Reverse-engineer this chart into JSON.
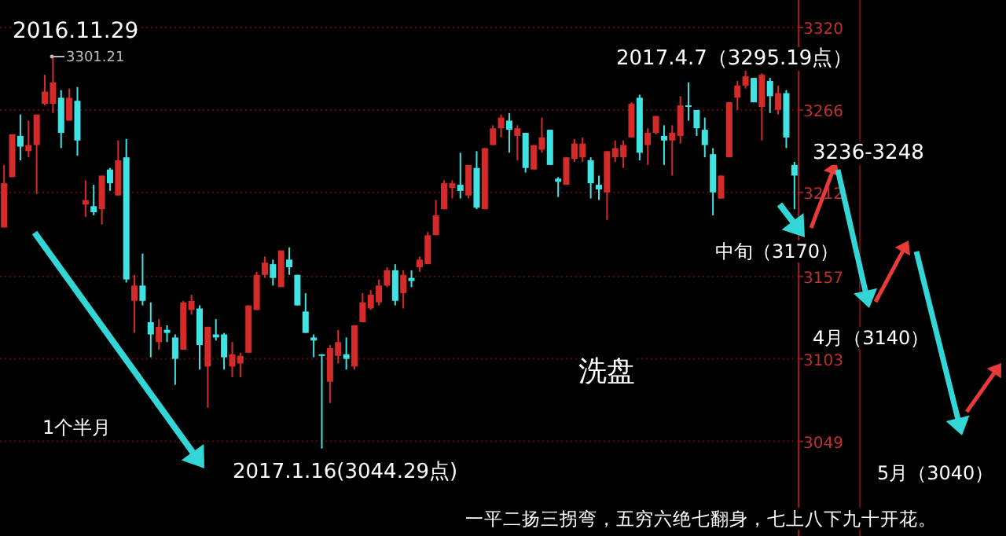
{
  "chart_data": {
    "type": "candlestick",
    "categories": [
      null,
      null,
      null,
      null,
      null,
      null,
      null,
      null,
      null,
      null,
      null,
      null,
      null,
      null,
      null,
      null,
      null,
      null,
      null,
      null,
      null,
      null,
      null,
      null,
      null,
      null,
      null,
      null,
      null,
      null,
      null,
      null,
      null,
      null,
      null,
      null,
      null,
      null,
      null,
      null,
      null,
      null,
      null,
      null,
      null,
      null,
      null,
      null,
      null,
      null,
      null,
      null,
      null,
      null,
      null,
      null,
      null,
      null,
      null,
      null,
      null,
      null,
      null,
      null,
      null,
      null,
      null,
      null,
      null,
      null,
      null,
      null,
      null,
      null,
      null,
      null,
      null,
      null,
      null,
      null,
      null,
      null,
      null,
      null,
      null,
      null,
      null,
      null,
      null,
      null,
      null,
      null,
      null,
      null,
      null,
      null,
      null,
      null
    ],
    "ohlc": [
      [
        3189,
        3230,
        3189,
        3218
      ],
      [
        3222,
        3250,
        3222,
        3250
      ],
      [
        3249,
        3263,
        3233,
        3242
      ],
      [
        3239,
        3259,
        3235,
        3243
      ],
      [
        3243,
        3263,
        3211,
        3263
      ],
      [
        3270,
        3289,
        3269,
        3278
      ],
      [
        3270,
        3301.21,
        3264,
        3284
      ],
      [
        3274,
        3279,
        3241,
        3251
      ],
      [
        3259,
        3280,
        3259,
        3274
      ],
      [
        3272,
        3281,
        3236,
        3246
      ],
      [
        3204,
        3220,
        3196,
        3207
      ],
      [
        3203,
        3217,
        3197,
        3199
      ],
      [
        3201,
        3223,
        3191,
        3223
      ],
      [
        3227,
        3228,
        3213,
        3218
      ],
      [
        3210,
        3246,
        3210,
        3233
      ],
      [
        3235,
        3247,
        3153,
        3155
      ],
      [
        3141,
        3158,
        3120,
        3151
      ],
      [
        3151,
        3172,
        3138,
        3141
      ],
      [
        3127,
        3140,
        3104,
        3119
      ],
      [
        3114,
        3129,
        3109,
        3124
      ],
      [
        3122,
        3125,
        3114,
        3120
      ],
      [
        3117,
        3119,
        3086,
        3103
      ],
      [
        3109,
        3141,
        3109,
        3140
      ],
      [
        3135,
        3145,
        3132,
        3141
      ],
      [
        3136,
        3138,
        3096,
        3112
      ],
      [
        3098,
        3124,
        3071,
        3124
      ],
      [
        3119,
        3129,
        3115,
        3117
      ],
      [
        3119,
        3120,
        3096,
        3104
      ],
      [
        3098,
        3114,
        3091,
        3106
      ],
      [
        3100,
        3107,
        3091,
        3105
      ],
      [
        3107,
        3138,
        3107,
        3138
      ],
      [
        3135,
        3160,
        3135,
        3158
      ],
      [
        3158,
        3170,
        3156,
        3166
      ],
      [
        3165,
        3168,
        3151,
        3156
      ],
      [
        3150,
        3174,
        3150,
        3174
      ],
      [
        3168,
        3176,
        3158,
        3163
      ],
      [
        3158,
        3158,
        3138,
        3138
      ],
      [
        3134,
        3146,
        3120,
        3120
      ],
      [
        3117,
        3119,
        3104,
        3115
      ],
      [
        3106,
        3106,
        3044.29,
        3105
      ],
      [
        3088,
        3112,
        3074,
        3110
      ],
      [
        3105,
        3122,
        3100,
        3114
      ],
      [
        3106,
        3117,
        3096,
        3103
      ],
      [
        3098,
        3125,
        3096,
        3125
      ],
      [
        3127,
        3146,
        3127,
        3140
      ],
      [
        3136,
        3148,
        3135,
        3145
      ],
      [
        3140,
        3155,
        3138,
        3151
      ],
      [
        3151,
        3163,
        3150,
        3161
      ],
      [
        3161,
        3165,
        3138,
        3141
      ],
      [
        3146,
        3161,
        3136,
        3158
      ],
      [
        3156,
        3161,
        3150,
        3154
      ],
      [
        3163,
        3170,
        3160,
        3168
      ],
      [
        3165,
        3186,
        3165,
        3184
      ],
      [
        3184,
        3207,
        3184,
        3197
      ],
      [
        3201,
        3220,
        3201,
        3218
      ],
      [
        3215,
        3220,
        3208,
        3218
      ],
      [
        3217,
        3238,
        3208,
        3213
      ],
      [
        3210,
        3230,
        3208,
        3230
      ],
      [
        3228,
        3239,
        3201,
        3202
      ],
      [
        3201,
        3241,
        3201,
        3241
      ],
      [
        3243,
        3256,
        3243,
        3254
      ],
      [
        3254,
        3263,
        3248,
        3261
      ],
      [
        3259,
        3264,
        3238,
        3253
      ],
      [
        3249,
        3256,
        3233,
        3254
      ],
      [
        3251,
        3251,
        3225,
        3228
      ],
      [
        3227,
        3243,
        3227,
        3243
      ],
      [
        3240,
        3261,
        3238,
        3248
      ],
      [
        3253,
        3253,
        3230,
        3230
      ],
      [
        3221,
        3222,
        3209,
        3219
      ],
      [
        3217,
        3235,
        3217,
        3235
      ],
      [
        3234,
        3247,
        3232,
        3244
      ],
      [
        3235,
        3248,
        3232,
        3244
      ],
      [
        3233,
        3235,
        3208,
        3218
      ],
      [
        3217,
        3223,
        3207,
        3214
      ],
      [
        3212,
        3239,
        3194,
        3239
      ],
      [
        3235,
        3246,
        3232,
        3241
      ],
      [
        3235,
        3246,
        3228,
        3243
      ],
      [
        3248,
        3271,
        3248,
        3270
      ],
      [
        3274,
        3276,
        3233,
        3238
      ],
      [
        3243,
        3254,
        3230,
        3251
      ],
      [
        3251,
        3262,
        3250,
        3262
      ],
      [
        3249,
        3256,
        3230,
        3246
      ],
      [
        3246,
        3256,
        3223,
        3251
      ],
      [
        3249,
        3275,
        3244,
        3269
      ],
      [
        3269,
        3284,
        3259,
        3268
      ],
      [
        3266,
        3266,
        3249,
        3254
      ],
      [
        3253,
        3261,
        3235,
        3243
      ],
      [
        3237,
        3241,
        3197,
        3212
      ],
      [
        3208,
        3223,
        3208,
        3223
      ],
      [
        3235,
        3271,
        3235,
        3271
      ],
      [
        3274,
        3285,
        3266,
        3282
      ],
      [
        3282,
        3295.19,
        3280,
        3288
      ],
      [
        3287,
        3287,
        3271,
        3271
      ],
      [
        3268,
        3290,
        3246,
        3289
      ],
      [
        3285,
        3287,
        3264,
        3275
      ],
      [
        3266,
        3282,
        3263,
        3277
      ],
      [
        3277,
        3279,
        3241,
        3248
      ],
      [
        3230,
        3232,
        3201,
        3223
      ]
    ],
    "ylim": [
      2987,
      3338
    ],
    "yticks": [
      3320,
      3266,
      3212,
      3157,
      3103,
      3049
    ],
    "grid": "y",
    "tick_labels": "y",
    "annotations": [
      "2016.11.29",
      "3301.21",
      "2017.1.16(3044.29点)",
      "1个半月",
      "2017.4.7（3295.19点）",
      "洗盘",
      "中旬（3170）",
      "3236-3248",
      "4月（3140）",
      "5月（3040）",
      "一平二扬三拐弯，五穷六绝七翻身，七上八下九十开花。"
    ]
  }
}
